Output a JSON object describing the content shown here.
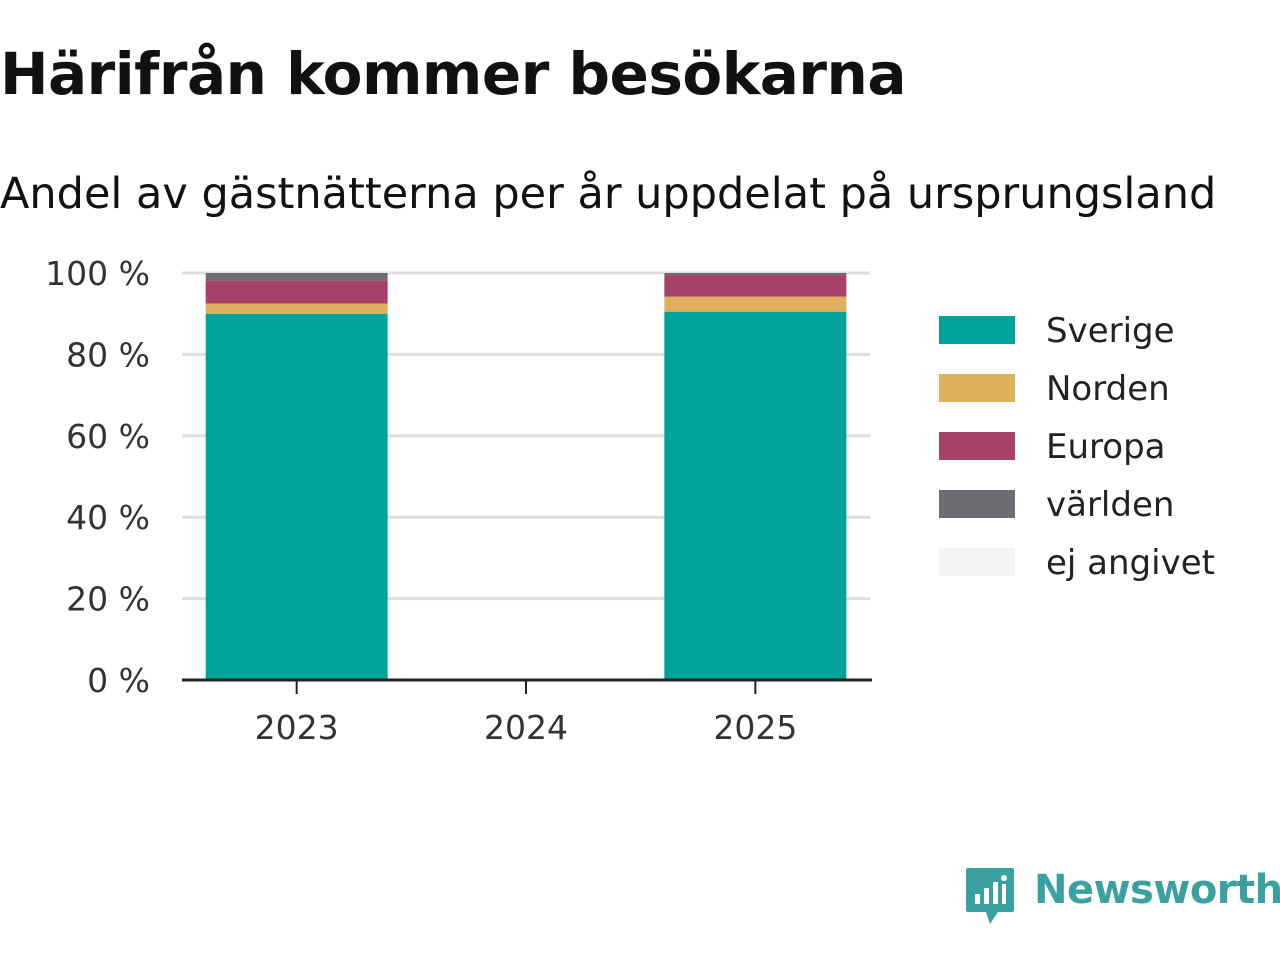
{
  "title": "Härifrån kommer besökarna",
  "subtitle": "Andel av gästnätterna per år uppdelat på ursprungsland",
  "brand": {
    "name": "Newsworthy",
    "icon": "newsworthy-logo-icon",
    "color": "#3aa0a0"
  },
  "chart_data": {
    "type": "bar",
    "stacked": true,
    "categories": [
      "2023",
      "2024",
      "2025"
    ],
    "y_ticks": [
      "0 %",
      "20 %",
      "40 %",
      "60 %",
      "80 %",
      "100 %"
    ],
    "ylim": [
      0,
      100
    ],
    "grid": true,
    "legend_position": "right",
    "series": [
      {
        "name": "Sverige",
        "color": "#00a39a",
        "values": [
          90,
          null,
          90.5
        ]
      },
      {
        "name": "Norden",
        "color": "#dfb15c",
        "values": [
          2.5,
          null,
          3.7
        ]
      },
      {
        "name": "Europa",
        "color": "#a8416a",
        "values": [
          5.7,
          null,
          5.3
        ]
      },
      {
        "name": "världen",
        "color": "#6c6d73",
        "values": [
          1.8,
          null,
          0.5
        ]
      },
      {
        "name": "ej angivet",
        "color": "#f4f4f2",
        "values": [
          0,
          null,
          0
        ]
      }
    ]
  }
}
